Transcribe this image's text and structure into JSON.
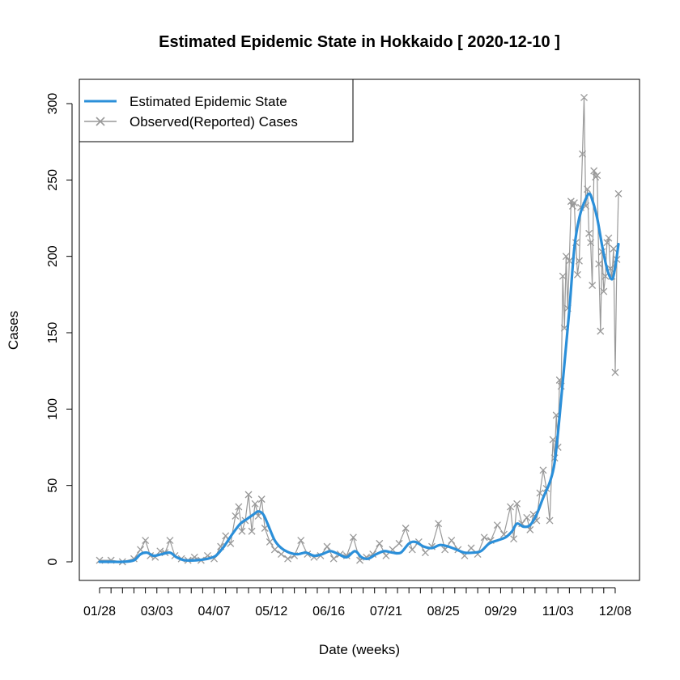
{
  "chart_data": {
    "type": "line",
    "title": "Estimated Epidemic State in Hokkaido [ 2020-12-10 ]",
    "xlabel": "Date (weeks)",
    "ylabel": "Cases",
    "xlim": [
      "2020-01-28",
      "2020-12-10"
    ],
    "ylim": [
      0,
      300
    ],
    "yticks": [
      0,
      50,
      100,
      150,
      200,
      250,
      300
    ],
    "xtick_labels": [
      "01/28",
      "03/03",
      "04/07",
      "05/12",
      "06/16",
      "07/21",
      "08/25",
      "09/29",
      "11/03",
      "12/08"
    ],
    "legend_position": "top-left",
    "grid": false,
    "series": [
      {
        "name": "Estimated Epidemic State",
        "color": "#2b8fd9",
        "points": [
          [
            "2020-01-28",
            0
          ],
          [
            "2020-02-04",
            0
          ],
          [
            "2020-02-11",
            0
          ],
          [
            "2020-02-18",
            1
          ],
          [
            "2020-02-22",
            5
          ],
          [
            "2020-02-26",
            6
          ],
          [
            "2020-03-01",
            4
          ],
          [
            "2020-03-06",
            5
          ],
          [
            "2020-03-11",
            6
          ],
          [
            "2020-03-15",
            3
          ],
          [
            "2020-03-20",
            1
          ],
          [
            "2020-03-27",
            1
          ],
          [
            "2020-04-03",
            2
          ],
          [
            "2020-04-08",
            4
          ],
          [
            "2020-04-13",
            10
          ],
          [
            "2020-04-18",
            18
          ],
          [
            "2020-04-23",
            25
          ],
          [
            "2020-04-27",
            28
          ],
          [
            "2020-05-01",
            31
          ],
          [
            "2020-05-04",
            33
          ],
          [
            "2020-05-07",
            31
          ],
          [
            "2020-05-10",
            24
          ],
          [
            "2020-05-14",
            14
          ],
          [
            "2020-05-18",
            9
          ],
          [
            "2020-05-23",
            6
          ],
          [
            "2020-05-28",
            5
          ],
          [
            "2020-06-02",
            6
          ],
          [
            "2020-06-07",
            4
          ],
          [
            "2020-06-12",
            5
          ],
          [
            "2020-06-17",
            7
          ],
          [
            "2020-06-22",
            5
          ],
          [
            "2020-06-27",
            3
          ],
          [
            "2020-07-02",
            7
          ],
          [
            "2020-07-06",
            3
          ],
          [
            "2020-07-10",
            2
          ],
          [
            "2020-07-15",
            5
          ],
          [
            "2020-07-20",
            7
          ],
          [
            "2020-07-25",
            6
          ],
          [
            "2020-07-30",
            6
          ],
          [
            "2020-08-04",
            12
          ],
          [
            "2020-08-08",
            13
          ],
          [
            "2020-08-13",
            10
          ],
          [
            "2020-08-18",
            9
          ],
          [
            "2020-08-23",
            11
          ],
          [
            "2020-08-28",
            10
          ],
          [
            "2020-09-02",
            8
          ],
          [
            "2020-09-07",
            6
          ],
          [
            "2020-09-12",
            6
          ],
          [
            "2020-09-17",
            7
          ],
          [
            "2020-09-22",
            12
          ],
          [
            "2020-09-27",
            14
          ],
          [
            "2020-10-02",
            16
          ],
          [
            "2020-10-06",
            20
          ],
          [
            "2020-10-09",
            25
          ],
          [
            "2020-10-13",
            23
          ],
          [
            "2020-10-17",
            24
          ],
          [
            "2020-10-21",
            31
          ],
          [
            "2020-10-25",
            42
          ],
          [
            "2020-10-29",
            52
          ],
          [
            "2020-11-01",
            65
          ],
          [
            "2020-11-04",
            95
          ],
          [
            "2020-11-07",
            130
          ],
          [
            "2020-11-10",
            165
          ],
          [
            "2020-11-13",
            205
          ],
          [
            "2020-11-16",
            225
          ],
          [
            "2020-11-19",
            235
          ],
          [
            "2020-11-22",
            241
          ],
          [
            "2020-11-24",
            237
          ],
          [
            "2020-11-27",
            225
          ],
          [
            "2020-11-30",
            207
          ],
          [
            "2020-12-03",
            192
          ],
          [
            "2020-12-06",
            185
          ],
          [
            "2020-12-08",
            193
          ],
          [
            "2020-12-10",
            208
          ]
        ]
      },
      {
        "name": "Observed(Reported) Cases",
        "color": "#999999",
        "points": [
          [
            "2020-01-28",
            1
          ],
          [
            "2020-02-04",
            1
          ],
          [
            "2020-02-11",
            0
          ],
          [
            "2020-02-18",
            2
          ],
          [
            "2020-02-22",
            8
          ],
          [
            "2020-02-25",
            14
          ],
          [
            "2020-02-28",
            4
          ],
          [
            "2020-03-02",
            3
          ],
          [
            "2020-03-05",
            7
          ],
          [
            "2020-03-08",
            6
          ],
          [
            "2020-03-11",
            14
          ],
          [
            "2020-03-14",
            4
          ],
          [
            "2020-03-18",
            2
          ],
          [
            "2020-03-22",
            1
          ],
          [
            "2020-03-26",
            3
          ],
          [
            "2020-03-30",
            1
          ],
          [
            "2020-04-03",
            4
          ],
          [
            "2020-04-07",
            2
          ],
          [
            "2020-04-11",
            10
          ],
          [
            "2020-04-14",
            17
          ],
          [
            "2020-04-17",
            12
          ],
          [
            "2020-04-20",
            30
          ],
          [
            "2020-04-22",
            36
          ],
          [
            "2020-04-24",
            20
          ],
          [
            "2020-04-26",
            27
          ],
          [
            "2020-04-28",
            44
          ],
          [
            "2020-04-30",
            20
          ],
          [
            "2020-05-02",
            38
          ],
          [
            "2020-05-04",
            30
          ],
          [
            "2020-05-06",
            41
          ],
          [
            "2020-05-08",
            22
          ],
          [
            "2020-05-11",
            13
          ],
          [
            "2020-05-14",
            8
          ],
          [
            "2020-05-18",
            5
          ],
          [
            "2020-05-22",
            2
          ],
          [
            "2020-05-26",
            4
          ],
          [
            "2020-05-30",
            14
          ],
          [
            "2020-06-03",
            5
          ],
          [
            "2020-06-07",
            3
          ],
          [
            "2020-06-11",
            4
          ],
          [
            "2020-06-15",
            10
          ],
          [
            "2020-06-19",
            2
          ],
          [
            "2020-06-23",
            5
          ],
          [
            "2020-06-27",
            4
          ],
          [
            "2020-07-01",
            16
          ],
          [
            "2020-07-05",
            1
          ],
          [
            "2020-07-09",
            3
          ],
          [
            "2020-07-13",
            5
          ],
          [
            "2020-07-17",
            12
          ],
          [
            "2020-07-21",
            4
          ],
          [
            "2020-07-25",
            8
          ],
          [
            "2020-07-29",
            12
          ],
          [
            "2020-08-02",
            22
          ],
          [
            "2020-08-06",
            8
          ],
          [
            "2020-08-10",
            13
          ],
          [
            "2020-08-14",
            6
          ],
          [
            "2020-08-18",
            10
          ],
          [
            "2020-08-22",
            25
          ],
          [
            "2020-08-26",
            8
          ],
          [
            "2020-08-30",
            14
          ],
          [
            "2020-09-03",
            8
          ],
          [
            "2020-09-07",
            4
          ],
          [
            "2020-09-11",
            9
          ],
          [
            "2020-09-15",
            5
          ],
          [
            "2020-09-19",
            16
          ],
          [
            "2020-09-23",
            14
          ],
          [
            "2020-09-27",
            24
          ],
          [
            "2020-10-01",
            18
          ],
          [
            "2020-10-05",
            36
          ],
          [
            "2020-10-07",
            15
          ],
          [
            "2020-10-09",
            38
          ],
          [
            "2020-10-12",
            25
          ],
          [
            "2020-10-15",
            29
          ],
          [
            "2020-10-17",
            21
          ],
          [
            "2020-10-19",
            31
          ],
          [
            "2020-10-21",
            27
          ],
          [
            "2020-10-23",
            45
          ],
          [
            "2020-10-25",
            60
          ],
          [
            "2020-10-27",
            48
          ],
          [
            "2020-10-29",
            27
          ],
          [
            "2020-10-31",
            80
          ],
          [
            "2020-11-01",
            68
          ],
          [
            "2020-11-02",
            96
          ],
          [
            "2020-11-03",
            75
          ],
          [
            "2020-11-04",
            119
          ],
          [
            "2020-11-05",
            115
          ],
          [
            "2020-11-06",
            187
          ],
          [
            "2020-11-07",
            153
          ],
          [
            "2020-11-08",
            200
          ],
          [
            "2020-11-09",
            166
          ],
          [
            "2020-11-10",
            197
          ],
          [
            "2020-11-11",
            236
          ],
          [
            "2020-11-12",
            233
          ],
          [
            "2020-11-13",
            235
          ],
          [
            "2020-11-14",
            209
          ],
          [
            "2020-11-15",
            188
          ],
          [
            "2020-11-16",
            197
          ],
          [
            "2020-11-17",
            232
          ],
          [
            "2020-11-18",
            267
          ],
          [
            "2020-11-19",
            304
          ],
          [
            "2020-11-20",
            233
          ],
          [
            "2020-11-21",
            244
          ],
          [
            "2020-11-22",
            215
          ],
          [
            "2020-11-23",
            209
          ],
          [
            "2020-11-24",
            181
          ],
          [
            "2020-11-25",
            256
          ],
          [
            "2020-11-26",
            252
          ],
          [
            "2020-11-27",
            253
          ],
          [
            "2020-11-28",
            195
          ],
          [
            "2020-11-29",
            151
          ],
          [
            "2020-11-30",
            203
          ],
          [
            "2020-12-01",
            177
          ],
          [
            "2020-12-02",
            187
          ],
          [
            "2020-12-03",
            209
          ],
          [
            "2020-12-04",
            212
          ],
          [
            "2020-12-05",
            192
          ],
          [
            "2020-12-06",
            187
          ],
          [
            "2020-12-07",
            205
          ],
          [
            "2020-12-08",
            124
          ],
          [
            "2020-12-09",
            198
          ],
          [
            "2020-12-10",
            241
          ]
        ]
      }
    ]
  }
}
